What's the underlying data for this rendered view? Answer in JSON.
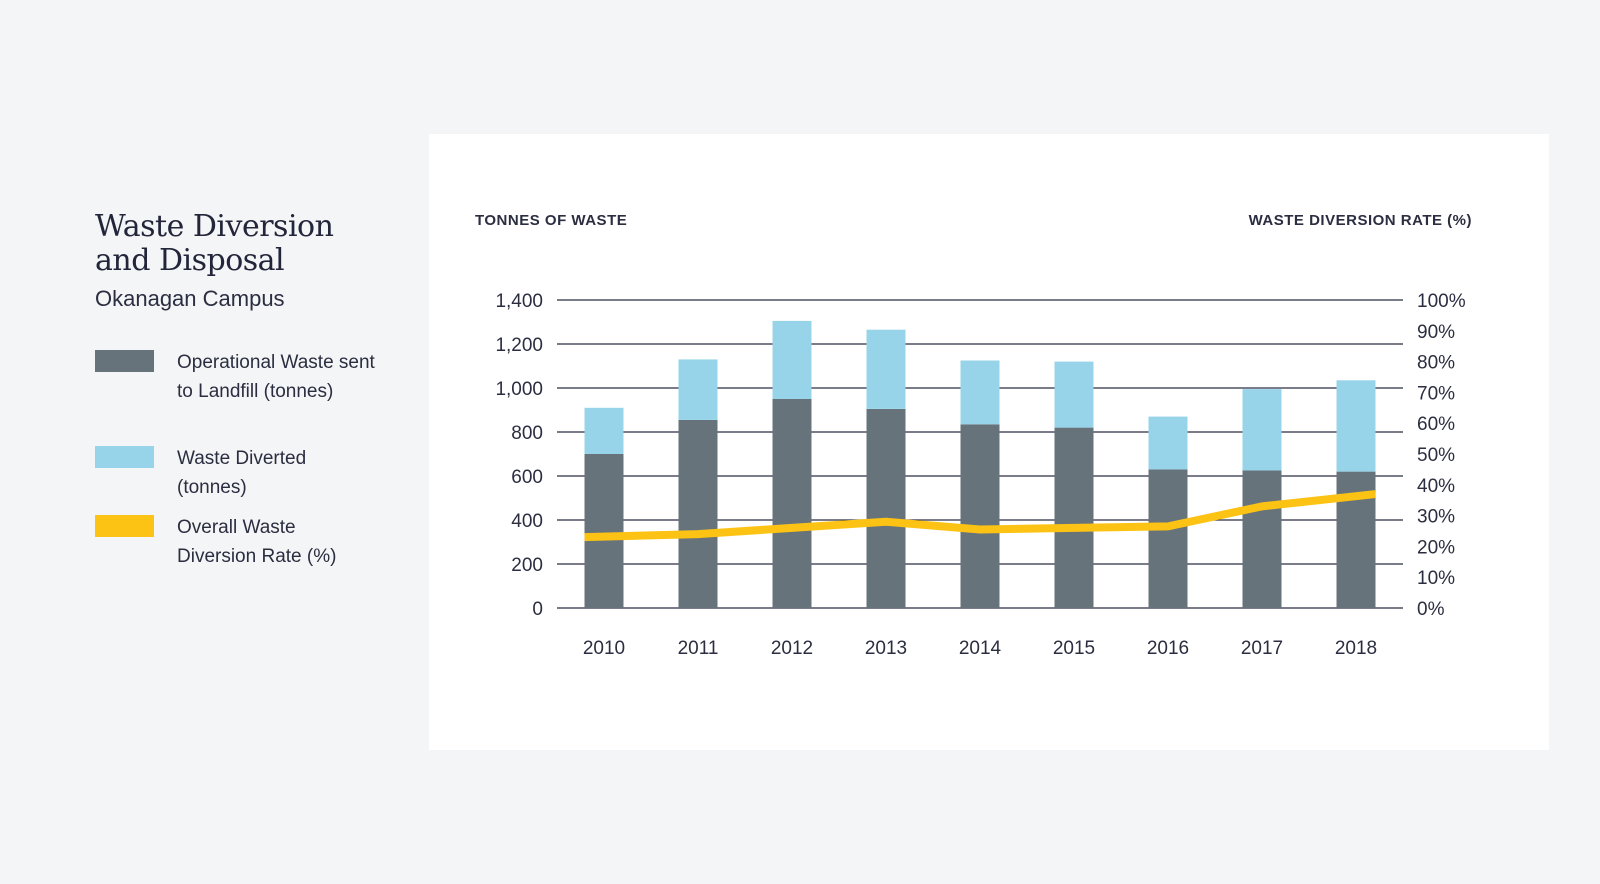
{
  "side": {
    "title_line1": "Waste Diversion",
    "title_line2": "and Disposal",
    "subtitle": "Okanagan Campus"
  },
  "legend": [
    {
      "label": "Operational Waste sent to Landfill (tonnes)",
      "color": "#67737b"
    },
    {
      "label": "Waste Diverted (tonnes)",
      "color": "#97d4ea"
    },
    {
      "label": "Overall Waste Diversion Rate (%)",
      "color": "#fcc314"
    }
  ],
  "chart_data": {
    "type": "bar",
    "stacked": true,
    "categories": [
      "2010",
      "2011",
      "2012",
      "2013",
      "2014",
      "2015",
      "2016",
      "2017",
      "2018"
    ],
    "series": [
      {
        "name": "Operational Waste sent to Landfill (tonnes)",
        "color": "#67737b",
        "axis": "left",
        "values": [
          700,
          855,
          950,
          905,
          835,
          820,
          630,
          625,
          620
        ]
      },
      {
        "name": "Waste Diverted (tonnes)",
        "color": "#97d4ea",
        "axis": "left",
        "values": [
          210,
          275,
          355,
          360,
          290,
          300,
          240,
          370,
          415
        ]
      },
      {
        "name": "Overall Waste Diversion Rate (%)",
        "color": "#fcc314",
        "axis": "right",
        "type": "line",
        "values": [
          23,
          24,
          26,
          28,
          25.5,
          26,
          26.5,
          33,
          37
        ]
      }
    ],
    "ylabel_left": "TONNES OF WASTE",
    "ylabel_right": "WASTE DIVERSION RATE (%)",
    "ylim_left": [
      0,
      1400
    ],
    "yticks_left": [
      "0",
      "200",
      "400",
      "600",
      "800",
      "1,000",
      "1,200",
      "1,400"
    ],
    "ylim_right": [
      0,
      100
    ],
    "yticks_right": [
      "0%",
      "10%",
      "20%",
      "30%",
      "40%",
      "50%",
      "60%",
      "70%",
      "80%",
      "90%",
      "100%"
    ],
    "grid": true
  }
}
